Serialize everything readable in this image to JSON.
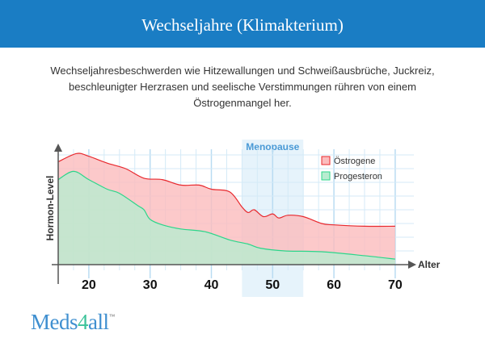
{
  "header": {
    "title": "Wechseljahre (Klimakterium)"
  },
  "intro": {
    "text": "Wechseljahresbeschwerden wie Hitzewallungen und Schweißausbrüche, Juckreiz, beschleunigter Herzrasen und seelische Verstimmungen rühren von einem Östrogenmangel her."
  },
  "logo": {
    "text_a": "Meds",
    "text_b": "4",
    "text_c": "all",
    "tm": "™"
  },
  "chart_data": {
    "type": "area",
    "title": "",
    "xlabel": "Alter",
    "ylabel": "Hormon-Level",
    "xlim": [
      15,
      73
    ],
    "ylim": [
      0,
      8.5
    ],
    "x_ticks": [
      20,
      30,
      40,
      50,
      60,
      70
    ],
    "grid": true,
    "legend": "top-right",
    "highlight": {
      "label": "Menopause",
      "from": 45,
      "to": 55,
      "color": "#e6f3fb"
    },
    "series": [
      {
        "name": "Östrogene",
        "color": "#e8282d",
        "fill": "#fbbcbd",
        "x": [
          15,
          18,
          20,
          23,
          26,
          29,
          32,
          35,
          38,
          40,
          43,
          45,
          46,
          47,
          48.5,
          50,
          51,
          52.5,
          55,
          58,
          60,
          65,
          70
        ],
        "y": [
          7.5,
          8.1,
          7.9,
          7.4,
          7.0,
          6.3,
          6.2,
          5.8,
          5.8,
          5.5,
          5.3,
          4.2,
          3.8,
          4.0,
          3.5,
          3.7,
          3.4,
          3.6,
          3.5,
          3.0,
          2.9,
          2.8,
          2.8
        ]
      },
      {
        "name": "Progesteron",
        "color": "#2bd68a",
        "fill": "#b8ecd0",
        "x": [
          15,
          17.5,
          20,
          23,
          25,
          28,
          29,
          30,
          32,
          35,
          39,
          43,
          46,
          48,
          52,
          58,
          65,
          70
        ],
        "y": [
          6.2,
          6.8,
          6.2,
          5.5,
          5.2,
          4.3,
          4.0,
          3.3,
          2.9,
          2.6,
          2.4,
          1.8,
          1.5,
          1.2,
          1.0,
          0.94,
          0.65,
          0.4
        ]
      }
    ]
  }
}
